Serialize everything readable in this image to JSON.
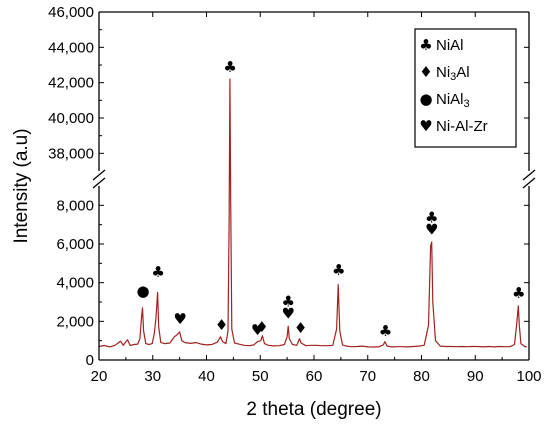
{
  "chart_data": {
    "type": "line",
    "xlabel": "2 theta (degree)",
    "ylabel": "Intensity (a.u)",
    "xlim": [
      20,
      100
    ],
    "ylim_lower": [
      0,
      9000
    ],
    "ylim_upper": [
      37000,
      46000
    ],
    "axis_break": true,
    "x_ticks": [
      "20",
      "30",
      "40",
      "50",
      "60",
      "70",
      "80",
      "90",
      "100"
    ],
    "y_ticks_lower": [
      "0",
      "2,000",
      "4,000",
      "6,000",
      "8,000"
    ],
    "y_ticks_upper": [
      "38,000",
      "40,000",
      "42,000",
      "44,000",
      "46,000"
    ],
    "line_color": "#a0231f",
    "legend_position": "top-right",
    "legend": [
      {
        "symbol": "club",
        "glyph": "♣",
        "label": "NiAl"
      },
      {
        "symbol": "diamond",
        "glyph": "♦",
        "label": "Ni3Al"
      },
      {
        "symbol": "circle",
        "glyph": "●",
        "label": "NiAl3"
      },
      {
        "symbol": "heart",
        "glyph": "♥",
        "label": "Ni-Al-Zr"
      }
    ],
    "pattern": [
      [
        20.0,
        700
      ],
      [
        21.0,
        750
      ],
      [
        22.0,
        680
      ],
      [
        23.0,
        760
      ],
      [
        24.0,
        980
      ],
      [
        24.5,
        760
      ],
      [
        25.3,
        1050
      ],
      [
        25.8,
        750
      ],
      [
        26.5,
        800
      ],
      [
        27.2,
        820
      ],
      [
        27.6,
        1100
      ],
      [
        27.9,
        2200
      ],
      [
        28.1,
        2700
      ],
      [
        28.3,
        1500
      ],
      [
        28.7,
        850
      ],
      [
        29.3,
        800
      ],
      [
        29.9,
        850
      ],
      [
        30.3,
        1400
      ],
      [
        30.6,
        2200
      ],
      [
        30.9,
        3500
      ],
      [
        31.1,
        1700
      ],
      [
        31.5,
        900
      ],
      [
        32.2,
        850
      ],
      [
        33.2,
        880
      ],
      [
        34.0,
        1200
      ],
      [
        34.5,
        1300
      ],
      [
        35.0,
        1450
      ],
      [
        35.4,
        1000
      ],
      [
        36.0,
        900
      ],
      [
        37.0,
        860
      ],
      [
        38.0,
        900
      ],
      [
        39.0,
        820
      ],
      [
        40.0,
        780
      ],
      [
        41.0,
        800
      ],
      [
        42.0,
        920
      ],
      [
        42.6,
        1200
      ],
      [
        43.0,
        950
      ],
      [
        43.6,
        850
      ],
      [
        44.0,
        1500
      ],
      [
        44.2,
        7000
      ],
      [
        44.35,
        42200
      ],
      [
        44.5,
        8200
      ],
      [
        44.7,
        1600
      ],
      [
        45.2,
        880
      ],
      [
        46.0,
        820
      ],
      [
        47.0,
        760
      ],
      [
        48.0,
        740
      ],
      [
        48.8,
        780
      ],
      [
        49.5,
        950
      ],
      [
        50.1,
        1000
      ],
      [
        50.4,
        1250
      ],
      [
        50.8,
        850
      ],
      [
        51.5,
        760
      ],
      [
        52.5,
        730
      ],
      [
        53.5,
        740
      ],
      [
        54.5,
        800
      ],
      [
        55.0,
        1200
      ],
      [
        55.2,
        1750
      ],
      [
        55.4,
        1100
      ],
      [
        56.0,
        800
      ],
      [
        56.8,
        760
      ],
      [
        57.3,
        1100
      ],
      [
        57.6,
        880
      ],
      [
        58.5,
        740
      ],
      [
        59.5,
        760
      ],
      [
        60.5,
        760
      ],
      [
        61.5,
        740
      ],
      [
        62.5,
        740
      ],
      [
        63.5,
        760
      ],
      [
        64.2,
        1600
      ],
      [
        64.5,
        3900
      ],
      [
        64.8,
        1500
      ],
      [
        65.3,
        780
      ],
      [
        66.0,
        720
      ],
      [
        67.0,
        690
      ],
      [
        68.0,
        700
      ],
      [
        69.0,
        720
      ],
      [
        70.0,
        680
      ],
      [
        71.0,
        670
      ],
      [
        72.0,
        680
      ],
      [
        72.9,
        780
      ],
      [
        73.2,
        950
      ],
      [
        73.6,
        720
      ],
      [
        74.5,
        680
      ],
      [
        75.5,
        690
      ],
      [
        76.5,
        690
      ],
      [
        77.5,
        680
      ],
      [
        78.5,
        700
      ],
      [
        79.5,
        720
      ],
      [
        80.5,
        760
      ],
      [
        81.3,
        1800
      ],
      [
        81.7,
        5900
      ],
      [
        81.9,
        6100
      ],
      [
        82.1,
        3000
      ],
      [
        82.6,
        1000
      ],
      [
        83.5,
        720
      ],
      [
        84.5,
        700
      ],
      [
        85.5,
        700
      ],
      [
        86.5,
        690
      ],
      [
        87.5,
        700
      ],
      [
        88.5,
        690
      ],
      [
        89.5,
        700
      ],
      [
        90.5,
        700
      ],
      [
        91.5,
        680
      ],
      [
        92.5,
        700
      ],
      [
        93.5,
        680
      ],
      [
        94.5,
        700
      ],
      [
        95.5,
        690
      ],
      [
        96.5,
        690
      ],
      [
        97.3,
        800
      ],
      [
        97.7,
        1800
      ],
      [
        98.0,
        2800
      ],
      [
        98.2,
        1800
      ],
      [
        98.5,
        850
      ],
      [
        99.2,
        700
      ],
      [
        99.6,
        680
      ]
    ],
    "peak_markers": [
      {
        "x": 28.2,
        "y": 3300,
        "symbols": [
          "circle"
        ]
      },
      {
        "x": 31.0,
        "y": 4300,
        "symbols": [
          "club"
        ]
      },
      {
        "x": 35.1,
        "y": 1850,
        "symbols": [
          "heart"
        ]
      },
      {
        "x": 42.8,
        "y": 1550,
        "symbols": [
          "diamond"
        ]
      },
      {
        "x": 44.4,
        "y": 42600,
        "symbols": [
          "club"
        ]
      },
      {
        "x": 49.5,
        "y": 1300,
        "symbols": [
          "heart"
        ]
      },
      {
        "x": 50.3,
        "y": 1450,
        "symbols": [
          "diamond"
        ]
      },
      {
        "x": 55.2,
        "y": 2150,
        "symbols": [
          "club",
          "heart"
        ]
      },
      {
        "x": 57.5,
        "y": 1400,
        "symbols": [
          "diamond"
        ]
      },
      {
        "x": 64.6,
        "y": 4400,
        "symbols": [
          "club"
        ]
      },
      {
        "x": 73.3,
        "y": 1250,
        "symbols": [
          "club"
        ]
      },
      {
        "x": 81.9,
        "y": 6500,
        "symbols": [
          "club",
          "heart"
        ]
      },
      {
        "x": 98.1,
        "y": 3200,
        "symbols": [
          "club"
        ]
      }
    ]
  }
}
